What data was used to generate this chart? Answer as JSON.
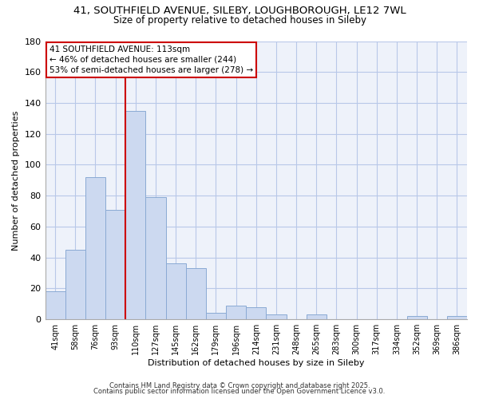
{
  "title_line1": "41, SOUTHFIELD AVENUE, SILEBY, LOUGHBOROUGH, LE12 7WL",
  "title_line2": "Size of property relative to detached houses in Sileby",
  "xlabel": "Distribution of detached houses by size in Sileby",
  "ylabel": "Number of detached properties",
  "bar_labels": [
    "41sqm",
    "58sqm",
    "76sqm",
    "93sqm",
    "110sqm",
    "127sqm",
    "145sqm",
    "162sqm",
    "179sqm",
    "196sqm",
    "214sqm",
    "231sqm",
    "248sqm",
    "265sqm",
    "283sqm",
    "300sqm",
    "317sqm",
    "334sqm",
    "352sqm",
    "369sqm",
    "386sqm"
  ],
  "bar_values": [
    18,
    45,
    92,
    71,
    135,
    79,
    36,
    33,
    4,
    9,
    8,
    3,
    0,
    3,
    0,
    0,
    0,
    0,
    2,
    0,
    2
  ],
  "bar_color": "#ccd9f0",
  "bar_edge_color": "#8aaad4",
  "highlight_bar_index": 4,
  "highlight_line_color": "#cc0000",
  "ylim": [
    0,
    180
  ],
  "yticks": [
    0,
    20,
    40,
    60,
    80,
    100,
    120,
    140,
    160,
    180
  ],
  "annotation_text_line1": "41 SOUTHFIELD AVENUE: 113sqm",
  "annotation_text_line2": "← 46% of detached houses are smaller (244)",
  "annotation_text_line3": "53% of semi-detached houses are larger (278) →",
  "footer_line1": "Contains HM Land Registry data © Crown copyright and database right 2025.",
  "footer_line2": "Contains public sector information licensed under the Open Government Licence v3.0.",
  "plot_bg_color": "#eef2fa",
  "fig_bg_color": "#ffffff",
  "grid_color": "#b8c8e8"
}
